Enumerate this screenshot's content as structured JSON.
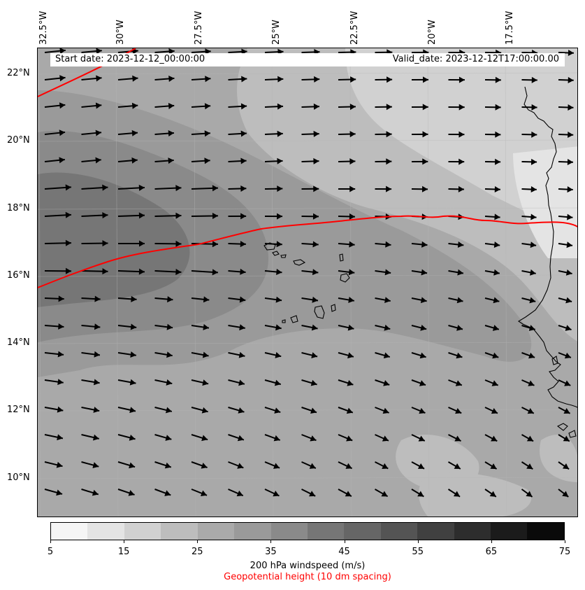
{
  "lon_labels": [
    "32.5°W",
    "30°W",
    "27.5°W",
    "25°W",
    "22.5°W",
    "20°W",
    "17.5°W"
  ],
  "lat_labels": [
    "22°N",
    "20°N",
    "18°N",
    "16°N",
    "14°N",
    "12°N",
    "10°N"
  ],
  "start_date": "Start date: 2023-12-12_00:00:00",
  "valid_date": "Valid_date: 2023-12-12T17:00:00.00",
  "colorbar": {
    "ticks": [
      "5",
      "15",
      "25",
      "35",
      "45",
      "55",
      "65",
      "75"
    ],
    "colors": [
      "#f5f5f5",
      "#e4e4e4",
      "#d1d1d1",
      "#bdbdbd",
      "#aaaaaa",
      "#9a9a9a",
      "#8a8a8a",
      "#767676",
      "#666666",
      "#545454",
      "#404040",
      "#2d2d2d",
      "#1b1b1b",
      "#0a0a0a"
    ]
  },
  "windspeed_label": "200 hPa windspeed (m/s)",
  "geopotential_label": "Geopotential height (10 dm spacing)",
  "contour_color": "#ff0000"
}
